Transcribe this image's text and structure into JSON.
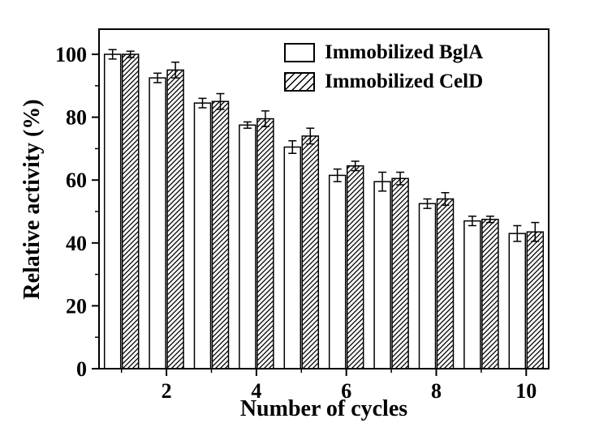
{
  "chart_data": {
    "type": "bar",
    "title": "",
    "xlabel": "Number of cycles",
    "ylabel": "Relative activity (%)",
    "categories": [
      1,
      2,
      3,
      4,
      5,
      6,
      7,
      8,
      9,
      10
    ],
    "x_ticks_at": [
      2,
      4,
      6,
      8,
      10
    ],
    "y_ticks": [
      0,
      20,
      40,
      60,
      80,
      100
    ],
    "y_minor_ticks": [
      10,
      30,
      50,
      70,
      90
    ],
    "ylim": [
      0,
      108
    ],
    "grid": false,
    "legend_position": "top-right",
    "series": [
      {
        "name": "Immobilized BglA",
        "style": "open",
        "values": [
          100,
          92.5,
          84.5,
          77.5,
          70.5,
          61.5,
          59.5,
          52.5,
          47,
          43
        ],
        "errors": [
          1.5,
          1.5,
          1.5,
          1,
          2,
          2,
          3,
          1.5,
          1.5,
          2.5
        ]
      },
      {
        "name": "Immobilized CelD",
        "style": "hatched",
        "values": [
          100,
          95,
          85,
          79.5,
          74,
          64.5,
          60.5,
          54,
          47.5,
          43.5
        ],
        "errors": [
          1,
          2.5,
          2.5,
          2.5,
          2.5,
          1.5,
          2,
          2,
          1,
          3
        ]
      }
    ]
  },
  "colors": {
    "background": "#ffffff",
    "bar_fill": "#ffffff",
    "bar_border": "#000000",
    "hatch": "#000000",
    "axis": "#000000",
    "text": "#000000"
  }
}
